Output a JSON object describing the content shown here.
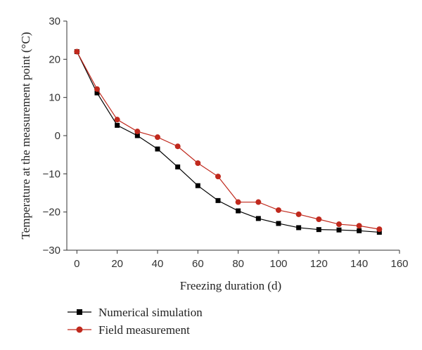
{
  "chart_data": {
    "type": "line",
    "title": "",
    "xlabel": "Freezing duration (d)",
    "ylabel": "Temperature at the measurement point (°C)",
    "xlim": [
      -5,
      160
    ],
    "ylim": [
      -30,
      30
    ],
    "xticks": [
      0,
      20,
      40,
      60,
      80,
      100,
      120,
      140,
      160
    ],
    "yticks": [
      -30,
      -20,
      -10,
      0,
      10,
      20,
      30
    ],
    "grid": false,
    "legend_position": "bottom-left",
    "x": [
      0,
      10,
      20,
      30,
      40,
      50,
      60,
      70,
      80,
      90,
      100,
      110,
      120,
      130,
      140,
      150
    ],
    "series": [
      {
        "name": "Numerical simulation",
        "color": "#000000",
        "marker": "square",
        "values": [
          22,
          11.2,
          2.7,
          0,
          -3.5,
          -8.2,
          -13.1,
          -17,
          -19.7,
          -21.7,
          -23,
          -24.1,
          -24.6,
          -24.7,
          -24.9,
          -25.3
        ]
      },
      {
        "name": "Field measurement",
        "color": "#c0291d",
        "marker": "circle",
        "values": [
          22,
          12.2,
          4.2,
          1.1,
          -0.4,
          -2.8,
          -7.2,
          -10.7,
          -17.4,
          -17.4,
          -19.5,
          -20.6,
          -21.9,
          -23.2,
          -23.6,
          -24.5
        ]
      }
    ]
  }
}
